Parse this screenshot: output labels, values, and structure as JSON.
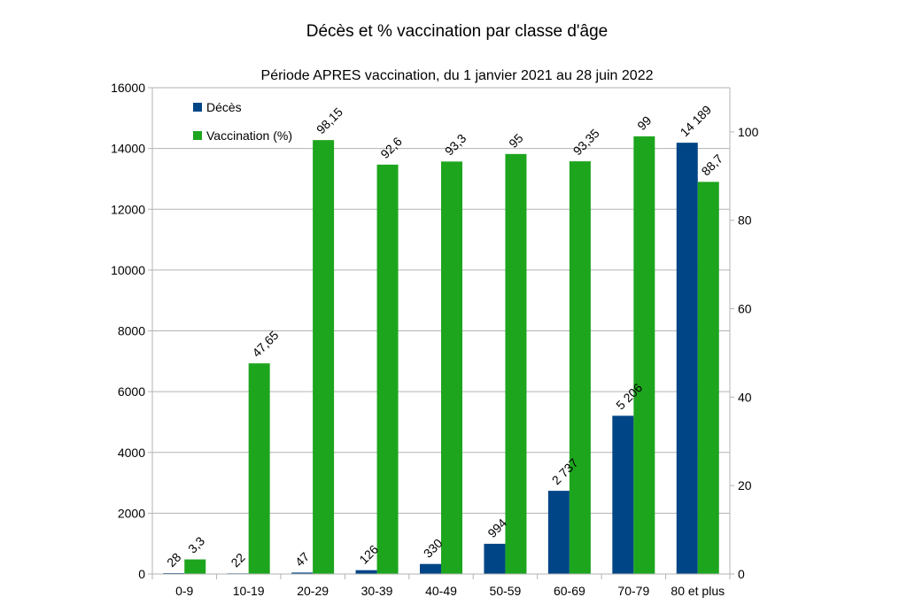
{
  "chart_data": {
    "type": "bar",
    "title": "Décès et % vaccination par classe d'âge",
    "subtitle": "Période APRES vaccination, du  1 janvier 2021 au 28 juin 2022",
    "categories": [
      "0-9",
      "10-19",
      "20-29",
      "30-39",
      "40-49",
      "50-59",
      "60-69",
      "70-79",
      "80 et plus"
    ],
    "series": [
      {
        "name": "Décès",
        "axis": "left",
        "color": "#004586",
        "values": [
          28,
          22,
          47,
          126,
          330,
          994,
          2737,
          5206,
          14189
        ],
        "labels": [
          "28",
          "22",
          "47",
          "126",
          "330",
          "994",
          "2 737",
          "5 206",
          "14 189"
        ]
      },
      {
        "name": "Vaccination (%)",
        "axis": "right",
        "color": "#1ea51e",
        "values": [
          3.3,
          47.65,
          98.15,
          92.6,
          93.3,
          95,
          93.35,
          99,
          88.7
        ],
        "labels": [
          "3,3",
          "47,65",
          "98,15",
          "92,6",
          "93,3",
          "95",
          "93,35",
          "99",
          "88,7"
        ]
      }
    ],
    "y_left": {
      "min": 0,
      "max": 16000,
      "ticks": [
        0,
        2000,
        4000,
        6000,
        8000,
        10000,
        12000,
        14000,
        16000
      ]
    },
    "y_right": {
      "min": 0,
      "max": 110,
      "ticks": [
        0,
        20,
        40,
        60,
        80,
        100
      ]
    },
    "grid": true,
    "legend_position": "top-left"
  }
}
